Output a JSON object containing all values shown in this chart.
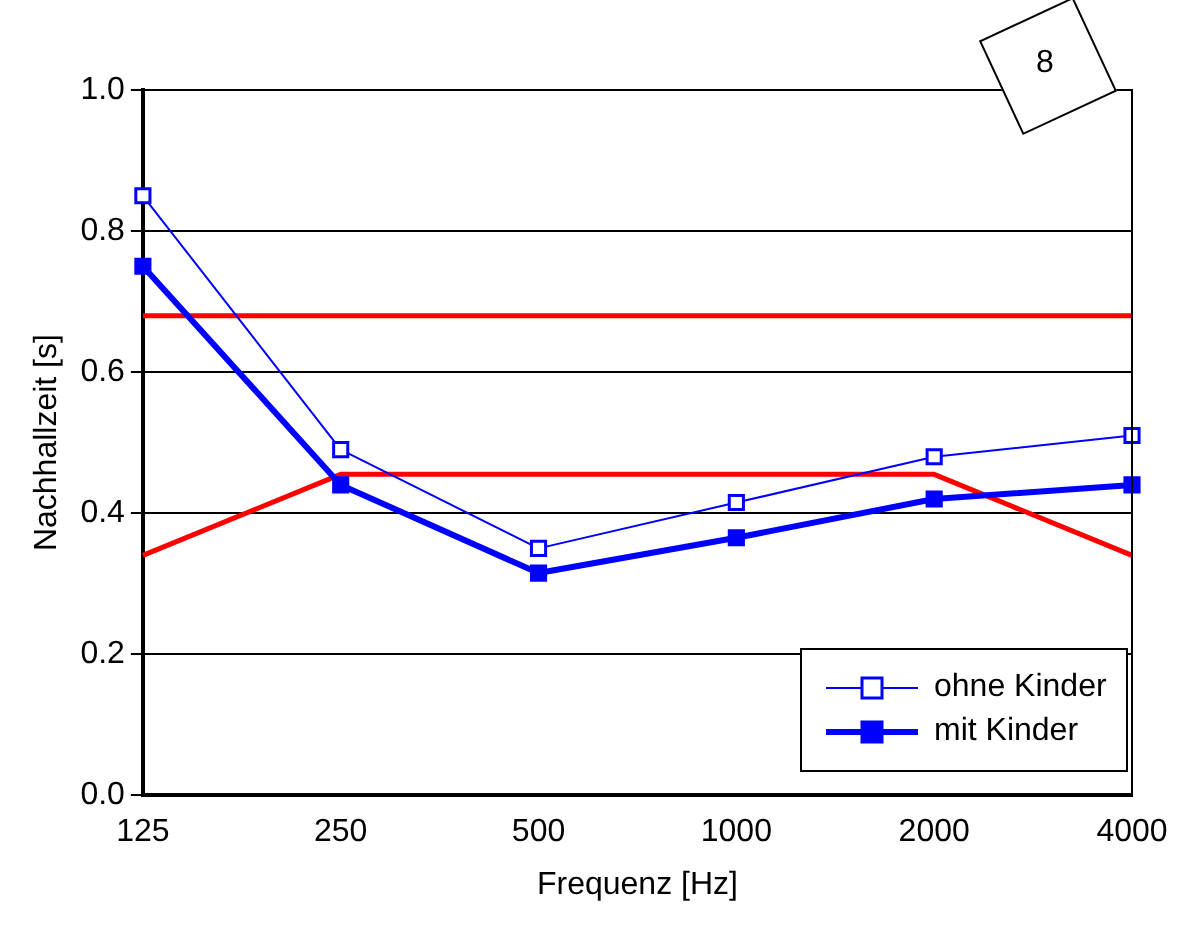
{
  "chart_data": {
    "type": "line",
    "xlabel": "Frequenz [Hz]",
    "ylabel": "Nachhallzeit [s]",
    "categories": [
      "125",
      "250",
      "500",
      "1000",
      "2000",
      "4000"
    ],
    "series": [
      {
        "name": "ohne Kinder",
        "color": "#0000ff",
        "values": [
          0.85,
          0.49,
          0.35,
          0.415,
          0.48,
          0.51
        ],
        "marker": "square"
      },
      {
        "name": "mit Kinder",
        "color": "#0000ff",
        "values": [
          0.75,
          0.44,
          0.315,
          0.365,
          0.42,
          0.44
        ],
        "marker": "square"
      },
      {
        "color": "#ff0000",
        "values": [
          0.68,
          0.68,
          0.68,
          0.68,
          0.68,
          0.68
        ],
        "marker": "none"
      },
      {
        "color": "#ff0000",
        "values": [
          0.34,
          0.455,
          0.455,
          0.455,
          0.455,
          0.34
        ],
        "marker": "none"
      }
    ],
    "ylim": [
      0,
      1
    ],
    "yticks": [
      {
        "value": 0,
        "label": "0.0"
      },
      0.2,
      0.4,
      0.6,
      0.8,
      {
        "value": 1,
        "label": "1.0"
      }
    ],
    "grid": "y",
    "legend": "bottom right",
    "annotations": [
      "8"
    ]
  }
}
